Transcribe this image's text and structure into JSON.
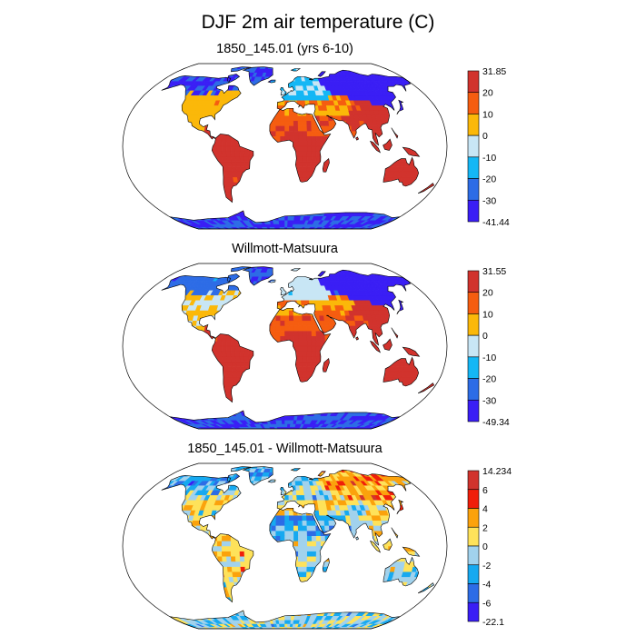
{
  "title": "DJF 2m air temperature (C)",
  "colors": {
    "land_outline": "#000000",
    "ocean": "#ffffff",
    "missing": "#ffffff"
  },
  "chart_data": [
    {
      "type": "heatmap",
      "title": "1850_145.01 (yrs 6-10)",
      "projection": "Robinson",
      "grid": false,
      "legend_position": "right",
      "colorbar": {
        "max_label": "31.85",
        "min_label": "-41.44",
        "tick_labels": [
          "20",
          "10",
          "0",
          "-10",
          "-20",
          "-30"
        ],
        "colors": [
          "#d1332d",
          "#f55d10",
          "#fbb809",
          "#c8e6f5",
          "#14b7f5",
          "#2d6ce6",
          "#3a1ef5"
        ]
      },
      "regions": [
        {
          "region": "Antarctica",
          "value": -30
        },
        {
          "region": "Greenland",
          "value": -30
        },
        {
          "region": "Northern Canada",
          "value": -30
        },
        {
          "region": "Siberia",
          "value": -35
        },
        {
          "region": "Northern Europe",
          "value": -10
        },
        {
          "region": "United States",
          "value": 5
        },
        {
          "region": "Mediterranean",
          "value": 10
        },
        {
          "region": "Sahara",
          "value": 18
        },
        {
          "region": "Tropical Africa",
          "value": 25
        },
        {
          "region": "South America",
          "value": 25
        },
        {
          "region": "India",
          "value": 22
        },
        {
          "region": "Southeast Asia",
          "value": 25
        },
        {
          "region": "Australia",
          "value": 26
        }
      ]
    },
    {
      "type": "heatmap",
      "title": "Willmott-Matsuura",
      "projection": "Robinson",
      "grid": false,
      "legend_position": "right",
      "colorbar": {
        "max_label": "31.55",
        "min_label": "-49.34",
        "tick_labels": [
          "20",
          "10",
          "0",
          "-10",
          "-20",
          "-30"
        ],
        "colors": [
          "#d1332d",
          "#f55d10",
          "#fbb809",
          "#c8e6f5",
          "#14b7f5",
          "#2d6ce6",
          "#3a1ef5"
        ]
      },
      "regions": [
        {
          "region": "Antarctica",
          "value": -30
        },
        {
          "region": "Greenland",
          "value": -30
        },
        {
          "region": "Northern Canada",
          "value": -25
        },
        {
          "region": "Siberia",
          "value": -35
        },
        {
          "region": "Northern Europe",
          "value": -5
        },
        {
          "region": "United States",
          "value": 0
        },
        {
          "region": "Mediterranean",
          "value": 10
        },
        {
          "region": "Sahara",
          "value": 18
        },
        {
          "region": "Tropical Africa",
          "value": 25
        },
        {
          "region": "South America",
          "value": 25
        },
        {
          "region": "India",
          "value": 22
        },
        {
          "region": "Southeast Asia",
          "value": 25
        },
        {
          "region": "Australia",
          "value": 27
        }
      ]
    },
    {
      "type": "heatmap",
      "title": "1850_145.01 - Willmott-Matsuura",
      "projection": "Robinson",
      "grid": false,
      "legend_position": "right",
      "colorbar": {
        "max_label": "14.234",
        "min_label": "-22.1",
        "tick_labels": [
          "6",
          "4",
          "2",
          "0",
          "-2",
          "-4",
          "-6"
        ],
        "colors": [
          "#d1332d",
          "#f01e0a",
          "#fba20c",
          "#fee25a",
          "#a1d2ed",
          "#16a9f0",
          "#2d6ce6",
          "#3a1ef5"
        ]
      },
      "regions": [
        {
          "region": "Antarctica",
          "value": -1
        },
        {
          "region": "Greenland",
          "value": -3
        },
        {
          "region": "Northern Canada",
          "value": -3
        },
        {
          "region": "Siberia",
          "value": 3
        },
        {
          "region": "Northern Europe",
          "value": -1
        },
        {
          "region": "United States",
          "value": 1
        },
        {
          "region": "Mediterranean",
          "value": 1
        },
        {
          "region": "Sahara",
          "value": -3
        },
        {
          "region": "Tropical Africa",
          "value": -1
        },
        {
          "region": "South America",
          "value": 1
        },
        {
          "region": "India",
          "value": -1
        },
        {
          "region": "Southeast Asia",
          "value": 1
        },
        {
          "region": "Australia",
          "value": -1
        }
      ]
    }
  ]
}
